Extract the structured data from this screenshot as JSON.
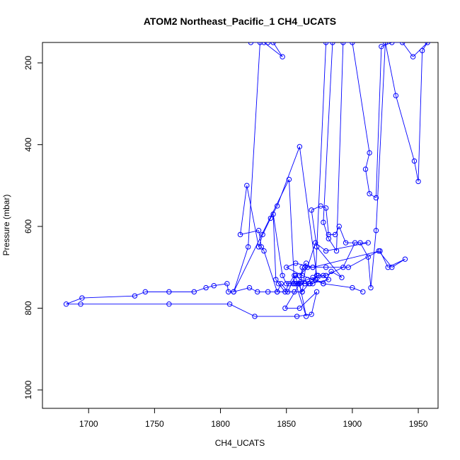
{
  "chart_data": {
    "type": "line",
    "title": "ATOM2 Northeast_Pacific_1 CH4_UCATS",
    "xlabel": "CH4_UCATS",
    "ylabel": "Pressure (mbar)",
    "xlim": [
      1665,
      1965
    ],
    "ylim": [
      1045,
      150
    ],
    "y_inverted": true,
    "xticks": [
      1700,
      1750,
      1800,
      1850,
      1900,
      1950
    ],
    "yticks": [
      200,
      400,
      600,
      800,
      1000
    ],
    "grid": false,
    "legend": "none",
    "line_color": "#0000ff",
    "marker": "open-circle",
    "series": [
      {
        "x": [
          1823,
          1833,
          1847,
          1840,
          1836,
          1830,
          1821,
          1810,
          1852,
          1856,
          1860,
          1865,
          1857,
          1866,
          1870,
          1878,
          1884,
          1892,
          1873,
          1869,
          1876,
          1880,
          1882,
          1887,
          1890,
          1895,
          1906,
          1912,
          1914,
          1918,
          1925,
          1933,
          1947,
          1950,
          1953,
          1957,
          1946,
          1938,
          1930,
          1922,
          1918,
          1913,
          1910,
          1913,
          1900,
          1893,
          1888,
          1882,
          1878,
          1885,
          1880,
          1872,
          1867,
          1862,
          1859,
          1856,
          1852,
          1849,
          1844,
          1842,
          1840,
          1847,
          1850,
          1855,
          1860,
          1864,
          1870,
          1878,
          1882,
          1868,
          1874,
          1864,
          1857,
          1851,
          1846,
          1843,
          1836,
          1828,
          1822,
          1810,
          1806,
          1805,
          1795,
          1789,
          1780,
          1761,
          1743,
          1735,
          1695,
          1683,
          1694,
          1761,
          1807,
          1826,
          1858,
          1869,
          1873,
          1860,
          1849,
          1861,
          1862,
          1865,
          1862,
          1856,
          1843,
          1833,
          1831,
          1829,
          1815,
          1820,
          1829,
          1832,
          1838,
          1843,
          1860,
          1873,
          1880,
          1893,
          1902,
          1912,
          1880,
          1872,
          1866,
          1860,
          1864,
          1870,
          1880,
          1897,
          1920,
          1930,
          1940,
          1927,
          1921,
          1870,
          1857,
          1850,
          1862,
          1878,
          1900,
          1908
        ],
        "y": [
          150,
          150,
          185,
          150,
          150,
          150,
          650,
          760,
          485,
          740,
          740,
          820,
          740,
          730,
          725,
          740,
          710,
          725,
          650,
          560,
          550,
          555,
          620,
          620,
          600,
          640,
          640,
          675,
          750,
          610,
          150,
          280,
          440,
          490,
          170,
          150,
          185,
          150,
          150,
          160,
          530,
          520,
          460,
          420,
          150,
          150,
          660,
          630,
          590,
          150,
          150,
          730,
          740,
          760,
          740,
          720,
          740,
          760,
          740,
          730,
          570,
          720,
          740,
          740,
          740,
          740,
          740,
          720,
          730,
          740,
          720,
          740,
          720,
          760,
          740,
          760,
          760,
          760,
          750,
          760,
          760,
          740,
          745,
          750,
          760,
          760,
          760,
          770,
          775,
          790,
          790,
          790,
          790,
          820,
          820,
          815,
          760,
          800,
          800,
          735,
          700,
          690,
          760,
          760,
          760,
          660,
          650,
          610,
          620,
          500,
          650,
          620,
          580,
          550,
          405,
          720,
          720,
          700,
          640,
          640,
          660,
          640,
          700,
          720,
          700,
          700,
          700,
          700,
          660,
          700,
          680,
          700,
          660,
          700,
          690,
          700,
          720,
          740,
          750,
          760
        ]
      }
    ]
  }
}
